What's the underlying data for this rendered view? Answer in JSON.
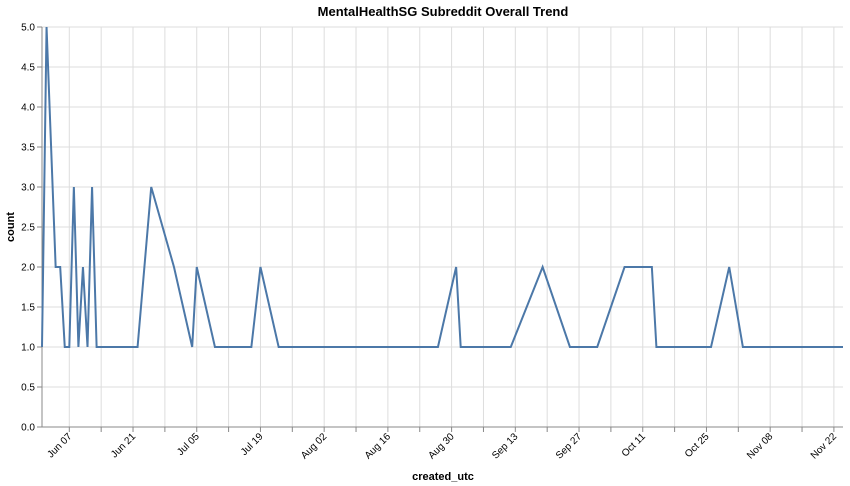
{
  "chart_data": {
    "type": "line",
    "title": "MentalHealthSG Subreddit Overall Trend",
    "xlabel": "created_utc",
    "ylabel": "count",
    "ylim": [
      0,
      5
    ],
    "xlim": [
      "2025-06-01",
      "2025-11-24"
    ],
    "grid": true,
    "yticks": [
      0,
      0.5,
      1,
      1.5,
      2,
      2.5,
      3,
      3.5,
      4,
      4.5,
      5
    ],
    "y_tick_labels": [
      "0.0",
      "0.5",
      "1.0",
      "1.5",
      "2.0",
      "2.5",
      "3.0",
      "3.5",
      "4.0",
      "4.5",
      "5.0"
    ],
    "x_ticks": [
      {
        "date": "2025-06-07",
        "label": "Jun 07"
      },
      {
        "date": "2025-06-21",
        "label": "Jun 21"
      },
      {
        "date": "2025-07-05",
        "label": "Jul 05"
      },
      {
        "date": "2025-07-19",
        "label": "Jul 19"
      },
      {
        "date": "2025-08-02",
        "label": "Aug 02"
      },
      {
        "date": "2025-08-16",
        "label": "Aug 16"
      },
      {
        "date": "2025-08-30",
        "label": "Aug 30"
      },
      {
        "date": "2025-09-13",
        "label": "Sep 13"
      },
      {
        "date": "2025-09-27",
        "label": "Sep 27"
      },
      {
        "date": "2025-10-11",
        "label": "Oct 11"
      },
      {
        "date": "2025-10-25",
        "label": "Oct 25"
      },
      {
        "date": "2025-11-08",
        "label": "Nov 08"
      },
      {
        "date": "2025-11-22",
        "label": "Nov 22"
      }
    ],
    "series": [
      {
        "color": "#4c78a8",
        "x": [
          "2025-06-01",
          "2025-06-02",
          "2025-06-04",
          "2025-06-05",
          "2025-06-06",
          "2025-06-07",
          "2025-06-08",
          "2025-06-09",
          "2025-06-10",
          "2025-06-11",
          "2025-06-12",
          "2025-06-13",
          "2025-06-14",
          "2025-06-22",
          "2025-06-25",
          "2025-06-30",
          "2025-07-04",
          "2025-07-05",
          "2025-07-09",
          "2025-07-17",
          "2025-07-19",
          "2025-07-23",
          "2025-08-27",
          "2025-08-31",
          "2025-09-01",
          "2025-09-12",
          "2025-09-19",
          "2025-09-25",
          "2025-10-01",
          "2025-10-07",
          "2025-10-13",
          "2025-10-14",
          "2025-10-26",
          "2025-10-30",
          "2025-11-02",
          "2025-11-24"
        ],
        "values": [
          1,
          5,
          2,
          2,
          1,
          1,
          3,
          1,
          2,
          1,
          3,
          1,
          1,
          1,
          3,
          2,
          1,
          2,
          1,
          1,
          2,
          1,
          1,
          2,
          1,
          1,
          2,
          1,
          1,
          2,
          2,
          1,
          1,
          2,
          1,
          1
        ]
      }
    ]
  }
}
